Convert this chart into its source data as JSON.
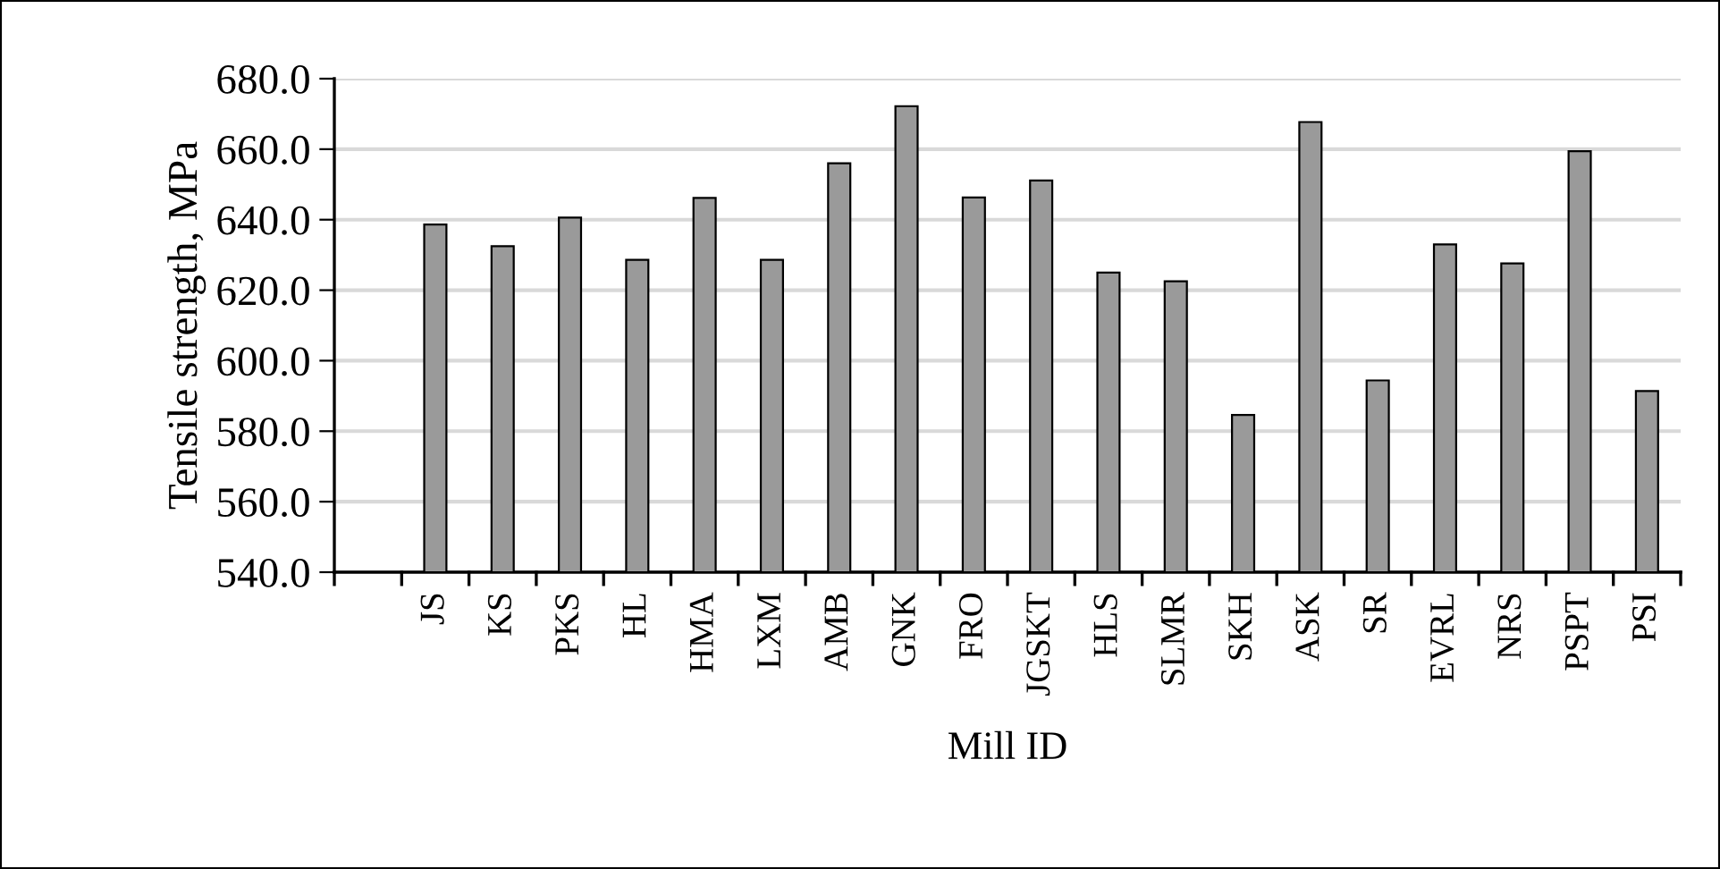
{
  "chart_data": {
    "type": "bar",
    "xlabel": "Mill ID",
    "ylabel": "Tensile strength, MPa",
    "categories": [
      null,
      "JS",
      "KS",
      "PKS",
      "HL",
      "HMA",
      "LXM",
      "AMB",
      "GNK",
      "FRO",
      "JGSKT",
      "HLS",
      "SLMR",
      "SKH",
      "ASK",
      "SR",
      "EVRL",
      "NRS",
      "PSPT",
      "PSI"
    ],
    "values": [
      null,
      638.6,
      632.5,
      640.6,
      628.6,
      646.2,
      628.6,
      656.0,
      672.2,
      646.3,
      651.1,
      625.0,
      622.5,
      584.6,
      667.7,
      594.4,
      633.0,
      627.6,
      659.4,
      591.4
    ],
    "color": "#9a9a9a",
    "ylim": [
      540,
      680
    ],
    "yticks": [
      {
        "value": 540,
        "label": "540.0"
      },
      {
        "value": 560,
        "label": "560.0"
      },
      {
        "value": 580,
        "label": "580.0"
      },
      {
        "value": 600,
        "label": "600.0"
      },
      {
        "value": 620,
        "label": "620.0"
      },
      {
        "value": 640,
        "label": "640.0"
      },
      {
        "value": 660,
        "label": "660.0"
      },
      {
        "value": 680,
        "label": "680.0"
      }
    ],
    "grid": "y",
    "legend": false
  }
}
